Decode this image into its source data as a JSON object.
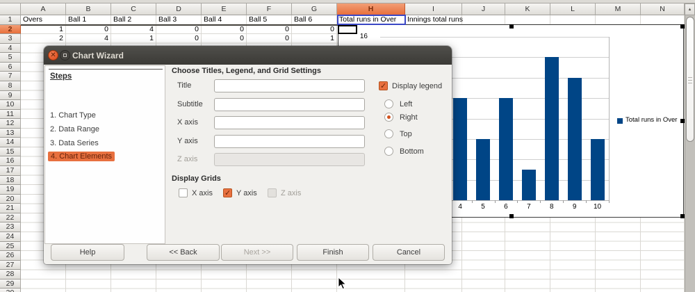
{
  "spreadsheet": {
    "columns": [
      {
        "label": "A",
        "width": 65
      },
      {
        "label": "B",
        "width": 65
      },
      {
        "label": "C",
        "width": 65
      },
      {
        "label": "D",
        "width": 65
      },
      {
        "label": "E",
        "width": 65
      },
      {
        "label": "F",
        "width": 65
      },
      {
        "label": "G",
        "width": 65
      },
      {
        "label": "H",
        "width": 98
      },
      {
        "label": "I",
        "width": 82
      },
      {
        "label": "J",
        "width": 62
      },
      {
        "label": "K",
        "width": 65
      },
      {
        "label": "L",
        "width": 65
      },
      {
        "label": "M",
        "width": 65
      },
      {
        "label": "N",
        "width": 63
      }
    ],
    "selected_column": "H",
    "selected_row": 2,
    "visible_rows": 30,
    "header_row": [
      "Overs",
      "Ball 1",
      "Ball 2",
      "Ball 3",
      "Ball 4",
      "Ball 5",
      "Ball 6",
      "Total runs in Over",
      "Innings total runs",
      "",
      "",
      "",
      "",
      ""
    ],
    "data_rows": [
      {
        "row": 2,
        "values": [
          "1",
          "0",
          "4",
          "0",
          "0",
          "0",
          "0"
        ]
      },
      {
        "row": 3,
        "values": [
          "2",
          "4",
          "1",
          "0",
          "0",
          "0",
          "1"
        ]
      }
    ]
  },
  "chart_data": {
    "type": "bar",
    "categories": [
      4,
      5,
      6,
      7,
      8,
      9,
      10
    ],
    "values": [
      10,
      6,
      10,
      3,
      14,
      12,
      6
    ],
    "series_name": "Total runs in Over",
    "title": "",
    "xlabel": "",
    "ylabel": "",
    "ylim": [
      0,
      16
    ],
    "y_tick_interval": 2,
    "visible_y_label": "16",
    "legend_position": "right",
    "grid": "horizontal"
  },
  "chart": {
    "legend_label": "Total runs in Over",
    "y_top_label": "16"
  },
  "scrollbar": {
    "up_arrow": "▲"
  },
  "dialog": {
    "title": "Chart Wizard",
    "steps_heading": "Steps",
    "steps": [
      {
        "label": "1. Chart Type",
        "active": false
      },
      {
        "label": "2. Data Range",
        "active": false
      },
      {
        "label": "3. Data Series",
        "active": false
      },
      {
        "label": "4. Chart Elements",
        "active": true
      }
    ],
    "content_heading": "Choose Titles, Legend, and Grid Settings",
    "fields": [
      {
        "label": "Title",
        "value": "",
        "disabled": false
      },
      {
        "label": "Subtitle",
        "value": "",
        "disabled": false
      },
      {
        "label": "X axis",
        "value": "",
        "disabled": false
      },
      {
        "label": "Y axis",
        "value": "",
        "disabled": false
      },
      {
        "label": "Z axis",
        "value": "",
        "disabled": true
      }
    ],
    "legend": {
      "checkbox_label": "Display legend",
      "checked": true,
      "options": [
        {
          "label": "Left",
          "selected": false
        },
        {
          "label": "Right",
          "selected": true
        },
        {
          "label": "Top",
          "selected": false
        },
        {
          "label": "Bottom",
          "selected": false
        }
      ]
    },
    "grids": {
      "heading": "Display Grids",
      "options": [
        {
          "label": "X axis",
          "checked": false,
          "disabled": false
        },
        {
          "label": "Y axis",
          "checked": true,
          "disabled": false
        },
        {
          "label": "Z axis",
          "checked": false,
          "disabled": true
        }
      ]
    },
    "buttons": [
      {
        "label": "Help",
        "disabled": false
      },
      {
        "label": "<< Back",
        "disabled": false
      },
      {
        "label": "Next >>",
        "disabled": true
      },
      {
        "label": "Finish",
        "disabled": false
      },
      {
        "label": "Cancel",
        "disabled": false
      }
    ]
  }
}
